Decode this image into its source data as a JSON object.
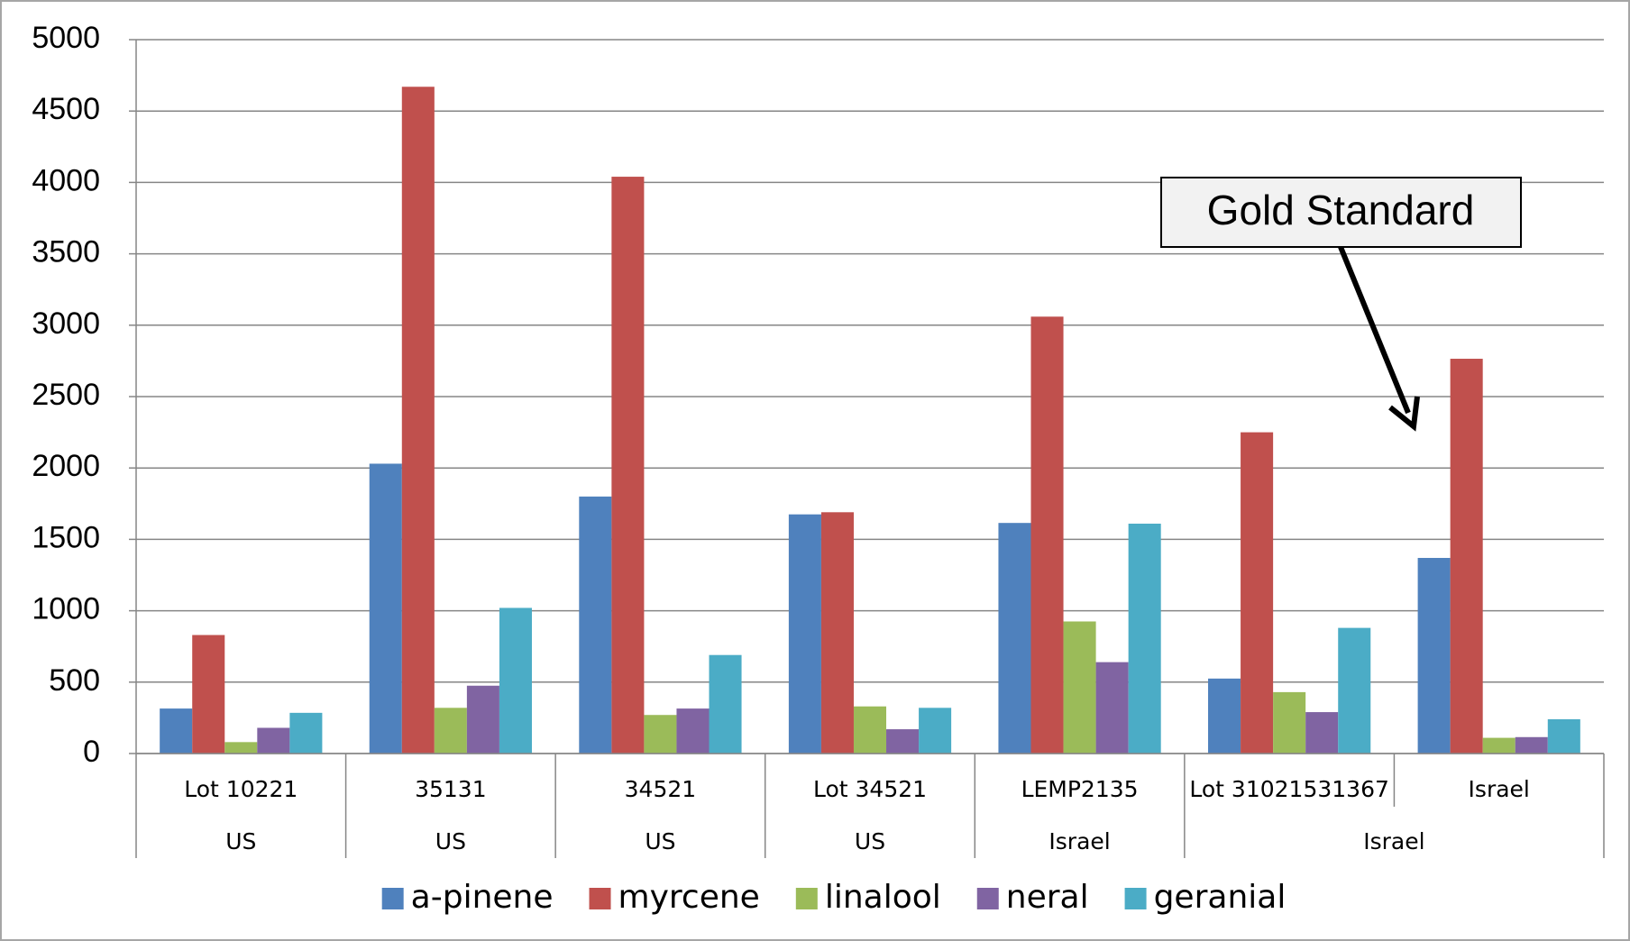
{
  "chart_data": {
    "type": "bar",
    "categories": [
      "Lot 10221",
      "35131",
      "34521",
      "Lot 34521",
      "LEMP2135",
      "Lot 31021531367",
      "Israel"
    ],
    "groups": [
      {
        "label": "US",
        "span": 1
      },
      {
        "label": "US",
        "span": 1
      },
      {
        "label": "US",
        "span": 1
      },
      {
        "label": "US",
        "span": 1
      },
      {
        "label": "Israel",
        "span": 1
      },
      {
        "label": "Israel",
        "span": 2
      }
    ],
    "series": [
      {
        "name": "a-pinene",
        "color": "#4f81bd",
        "values": [
          315,
          2030,
          1800,
          1675,
          1615,
          525,
          1370
        ]
      },
      {
        "name": "myrcene",
        "color": "#c0504d",
        "values": [
          830,
          4670,
          4040,
          1690,
          3060,
          2250,
          2765
        ]
      },
      {
        "name": "linalool",
        "color": "#9bbb59",
        "values": [
          80,
          320,
          270,
          330,
          925,
          430,
          110
        ]
      },
      {
        "name": "neral",
        "color": "#8064a2",
        "values": [
          180,
          475,
          315,
          170,
          640,
          290,
          115
        ]
      },
      {
        "name": "geranial",
        "color": "#4bacc6",
        "values": [
          285,
          1020,
          690,
          320,
          1610,
          880,
          240
        ]
      }
    ],
    "ylim": [
      0,
      5000
    ],
    "yticks": [
      0,
      500,
      1000,
      1500,
      2000,
      2500,
      3000,
      3500,
      4000,
      4500,
      5000
    ],
    "grid": true,
    "legend": "bottom",
    "annotations": [
      {
        "text": "Gold Standard"
      }
    ]
  }
}
